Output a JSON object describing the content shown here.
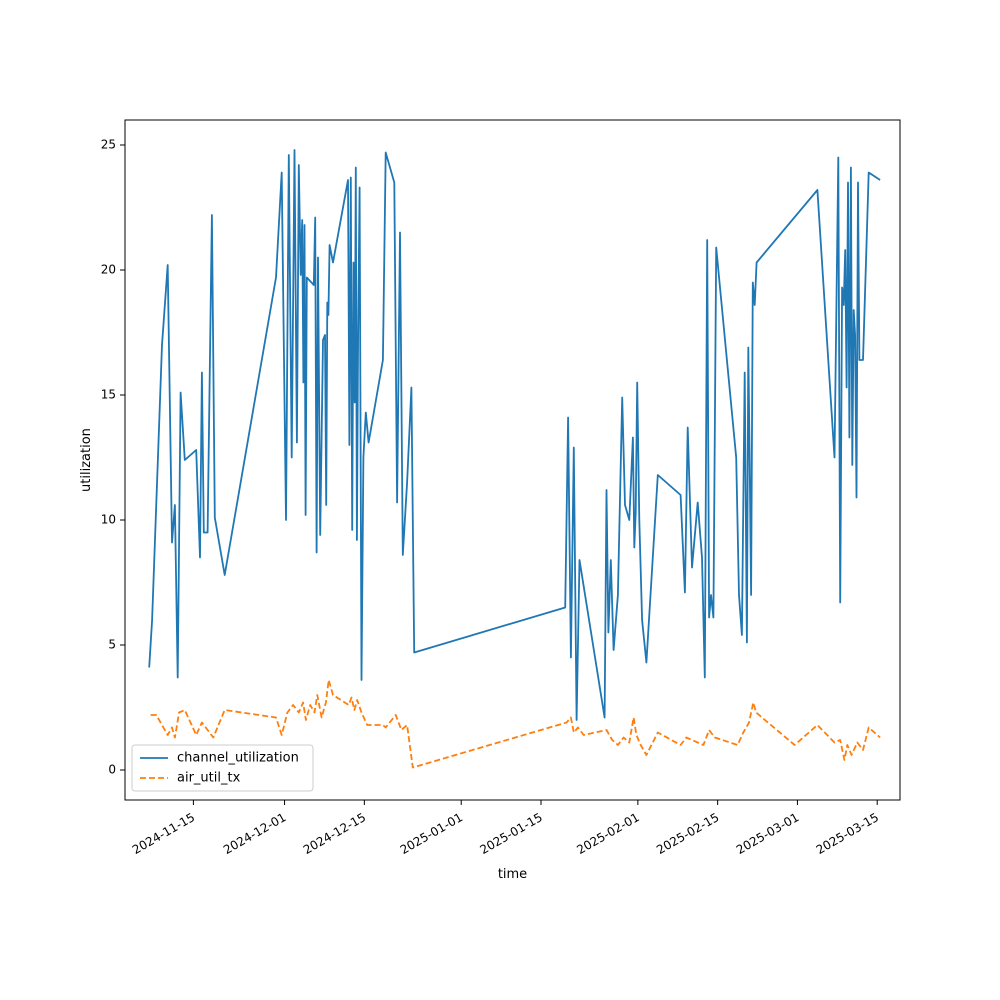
{
  "chart_data": {
    "type": "line",
    "title": "",
    "xlabel": "time",
    "ylabel": "utilization",
    "x_type": "date",
    "xlim": [
      "2024-11-03",
      "2025-03-19"
    ],
    "ylim": [
      -1.2,
      26.0
    ],
    "x_ticks": [
      "2024-11-15",
      "2024-12-01",
      "2024-12-15",
      "2025-01-01",
      "2025-01-15",
      "2025-02-01",
      "2025-02-15",
      "2025-03-01",
      "2025-03-15"
    ],
    "y_ticks": [
      0,
      5,
      10,
      15,
      20,
      25
    ],
    "grid": false,
    "legend": {
      "placement": "lower-left"
    },
    "series": [
      {
        "name": "channel_utilization",
        "color": "#1f77b4",
        "style": "solid",
        "points": [
          [
            "2024-11-07",
            4.1
          ],
          [
            "2024-11-07",
            6.0
          ],
          [
            "2024-11-09",
            17.0
          ],
          [
            "2024-11-10",
            20.2
          ],
          [
            "2024-11-11",
            9.1
          ],
          [
            "2024-11-11",
            10.6
          ],
          [
            "2024-11-12",
            3.7
          ],
          [
            "2024-11-12",
            15.1
          ],
          [
            "2024-11-13",
            12.4
          ],
          [
            "2024-11-15",
            12.8
          ],
          [
            "2024-11-16",
            8.5
          ],
          [
            "2024-11-16",
            15.9
          ],
          [
            "2024-11-16",
            9.5
          ],
          [
            "2024-11-17",
            9.5
          ],
          [
            "2024-11-18",
            22.2
          ],
          [
            "2024-11-18",
            10.1
          ],
          [
            "2024-11-20",
            7.8
          ],
          [
            "2024-11-29",
            19.7
          ],
          [
            "2024-11-30",
            23.9
          ],
          [
            "2024-12-01",
            10.0
          ],
          [
            "2024-12-01",
            24.6
          ],
          [
            "2024-12-02",
            12.5
          ],
          [
            "2024-12-02",
            24.8
          ],
          [
            "2024-12-03",
            13.1
          ],
          [
            "2024-12-03",
            24.2
          ],
          [
            "2024-12-03",
            19.8
          ],
          [
            "2024-12-04",
            22.0
          ],
          [
            "2024-12-04",
            15.5
          ],
          [
            "2024-12-04",
            21.8
          ],
          [
            "2024-12-04",
            10.2
          ],
          [
            "2024-12-04",
            19.7
          ],
          [
            "2024-12-06",
            19.4
          ],
          [
            "2024-12-06",
            22.1
          ],
          [
            "2024-12-06",
            8.7
          ],
          [
            "2024-12-06",
            20.5
          ],
          [
            "2024-12-07",
            9.4
          ],
          [
            "2024-12-07",
            17.2
          ],
          [
            "2024-12-08",
            17.4
          ],
          [
            "2024-12-08",
            10.6
          ],
          [
            "2024-12-08",
            18.7
          ],
          [
            "2024-12-08",
            18.2
          ],
          [
            "2024-12-08",
            21.0
          ],
          [
            "2024-12-09",
            20.3
          ],
          [
            "2024-12-12",
            23.6
          ],
          [
            "2024-12-12",
            13.0
          ],
          [
            "2024-12-12",
            23.7
          ],
          [
            "2024-12-12",
            9.6
          ],
          [
            "2024-12-13",
            20.3
          ],
          [
            "2024-12-13",
            14.7
          ],
          [
            "2024-12-13",
            24.1
          ],
          [
            "2024-12-13",
            9.2
          ],
          [
            "2024-12-13",
            17.4
          ],
          [
            "2024-12-14",
            23.3
          ],
          [
            "2024-12-14",
            3.6
          ],
          [
            "2024-12-14",
            12.5
          ],
          [
            "2024-12-15",
            14.3
          ],
          [
            "2024-12-15",
            13.1
          ],
          [
            "2024-12-18",
            16.4
          ],
          [
            "2024-12-18",
            24.7
          ],
          [
            "2024-12-20",
            23.5
          ],
          [
            "2024-12-20",
            10.7
          ],
          [
            "2024-12-21",
            21.5
          ],
          [
            "2024-12-21",
            8.6
          ],
          [
            "2024-12-22",
            11.5
          ],
          [
            "2024-12-23",
            15.3
          ],
          [
            "2024-12-23",
            4.7
          ],
          [
            "2025-01-19",
            6.5
          ],
          [
            "2025-01-19",
            14.1
          ],
          [
            "2025-01-20",
            4.5
          ],
          [
            "2025-01-20",
            12.9
          ],
          [
            "2025-01-21",
            2.0
          ],
          [
            "2025-01-21",
            8.4
          ],
          [
            "2025-01-26",
            2.1
          ],
          [
            "2025-01-26",
            11.2
          ],
          [
            "2025-01-26",
            5.5
          ],
          [
            "2025-01-27",
            8.4
          ],
          [
            "2025-01-27",
            4.8
          ],
          [
            "2025-01-28",
            7.0
          ],
          [
            "2025-01-29",
            14.9
          ],
          [
            "2025-01-29",
            10.6
          ],
          [
            "2025-01-30",
            10.0
          ],
          [
            "2025-01-31",
            13.3
          ],
          [
            "2025-01-31",
            8.9
          ],
          [
            "2025-01-31",
            10.3
          ],
          [
            "2025-01-31",
            15.5
          ],
          [
            "2025-02-01",
            10.0
          ],
          [
            "2025-02-01",
            6.0
          ],
          [
            "2025-02-02",
            4.3
          ],
          [
            "2025-02-04",
            11.8
          ],
          [
            "2025-02-08",
            11.0
          ],
          [
            "2025-02-09",
            7.1
          ],
          [
            "2025-02-09",
            13.7
          ],
          [
            "2025-02-10",
            8.1
          ],
          [
            "2025-02-11",
            10.7
          ],
          [
            "2025-02-12",
            8.5
          ],
          [
            "2025-02-12",
            3.7
          ],
          [
            "2025-02-13",
            21.2
          ],
          [
            "2025-02-13",
            6.1
          ],
          [
            "2025-02-13",
            7.0
          ],
          [
            "2025-02-14",
            6.1
          ],
          [
            "2025-02-14",
            20.9
          ],
          [
            "2025-02-18",
            12.5
          ],
          [
            "2025-02-18",
            7.0
          ],
          [
            "2025-02-19",
            5.4
          ],
          [
            "2025-02-19",
            15.9
          ],
          [
            "2025-02-20",
            5.1
          ],
          [
            "2025-02-20",
            16.9
          ],
          [
            "2025-02-20",
            12.3
          ],
          [
            "2025-02-20",
            7.0
          ],
          [
            "2025-02-21",
            19.5
          ],
          [
            "2025-02-21",
            18.6
          ],
          [
            "2025-02-21",
            20.3
          ],
          [
            "2025-03-04",
            23.2
          ],
          [
            "2025-03-07",
            12.5
          ],
          [
            "2025-03-08",
            24.5
          ],
          [
            "2025-03-08",
            6.7
          ],
          [
            "2025-03-08",
            19.3
          ],
          [
            "2025-03-09",
            18.6
          ],
          [
            "2025-03-09",
            20.8
          ],
          [
            "2025-03-09",
            15.3
          ],
          [
            "2025-03-09",
            23.5
          ],
          [
            "2025-03-10",
            13.3
          ],
          [
            "2025-03-10",
            24.1
          ],
          [
            "2025-03-10",
            12.2
          ],
          [
            "2025-03-10",
            18.4
          ],
          [
            "2025-03-11",
            17.4
          ],
          [
            "2025-03-11",
            10.9
          ],
          [
            "2025-03-11",
            23.5
          ],
          [
            "2025-03-11",
            16.4
          ],
          [
            "2025-03-12",
            16.4
          ],
          [
            "2025-03-13",
            23.9
          ],
          [
            "2025-03-15",
            23.6
          ]
        ]
      },
      {
        "name": "air_util_tx",
        "color": "#ff7f0e",
        "style": "dashed",
        "points": [
          [
            "2024-11-07",
            2.2
          ],
          [
            "2024-11-08",
            2.2
          ],
          [
            "2024-11-10",
            1.4
          ],
          [
            "2024-11-11",
            1.7
          ],
          [
            "2024-11-11",
            1.3
          ],
          [
            "2024-11-12",
            2.3
          ],
          [
            "2024-11-13",
            2.4
          ],
          [
            "2024-11-15",
            1.4
          ],
          [
            "2024-11-16",
            1.9
          ],
          [
            "2024-11-17",
            1.6
          ],
          [
            "2024-11-18",
            1.3
          ],
          [
            "2024-11-20",
            2.4
          ],
          [
            "2024-11-29",
            2.1
          ],
          [
            "2024-11-30",
            1.4
          ],
          [
            "2024-12-01",
            2.3
          ],
          [
            "2024-12-02",
            2.6
          ],
          [
            "2024-12-03",
            2.3
          ],
          [
            "2024-12-04",
            2.7
          ],
          [
            "2024-12-04",
            2.0
          ],
          [
            "2024-12-05",
            2.6
          ],
          [
            "2024-12-06",
            2.3
          ],
          [
            "2024-12-06",
            3.0
          ],
          [
            "2024-12-07",
            2.1
          ],
          [
            "2024-12-08",
            2.7
          ],
          [
            "2024-12-08",
            3.6
          ],
          [
            "2024-12-09",
            3.0
          ],
          [
            "2024-12-12",
            2.6
          ],
          [
            "2024-12-12",
            2.9
          ],
          [
            "2024-12-13",
            2.4
          ],
          [
            "2024-12-13",
            2.8
          ],
          [
            "2024-12-14",
            2.3
          ],
          [
            "2024-12-15",
            1.8
          ],
          [
            "2024-12-18",
            1.8
          ],
          [
            "2024-12-18",
            1.7
          ],
          [
            "2024-12-20",
            2.2
          ],
          [
            "2024-12-21",
            1.6
          ],
          [
            "2024-12-22",
            1.8
          ],
          [
            "2024-12-23",
            0.1
          ],
          [
            "2025-01-19",
            1.9
          ],
          [
            "2025-01-20",
            2.1
          ],
          [
            "2025-01-20",
            1.5
          ],
          [
            "2025-01-21",
            1.7
          ],
          [
            "2025-01-22",
            1.4
          ],
          [
            "2025-01-26",
            1.6
          ],
          [
            "2025-01-27",
            1.2
          ],
          [
            "2025-01-28",
            1.0
          ],
          [
            "2025-01-29",
            1.3
          ],
          [
            "2025-01-30",
            1.1
          ],
          [
            "2025-01-31",
            2.1
          ],
          [
            "2025-01-31",
            1.4
          ],
          [
            "2025-02-01",
            1.0
          ],
          [
            "2025-02-02",
            0.6
          ],
          [
            "2025-02-04",
            1.5
          ],
          [
            "2025-02-08",
            1.0
          ],
          [
            "2025-02-09",
            1.3
          ],
          [
            "2025-02-11",
            1.1
          ],
          [
            "2025-02-12",
            1.0
          ],
          [
            "2025-02-13",
            1.6
          ],
          [
            "2025-02-14",
            1.3
          ],
          [
            "2025-02-18",
            1.0
          ],
          [
            "2025-02-19",
            1.5
          ],
          [
            "2025-02-20",
            1.9
          ],
          [
            "2025-02-21",
            2.7
          ],
          [
            "2025-02-21",
            2.3
          ],
          [
            "2025-02-28",
            1.0
          ],
          [
            "2025-03-04",
            1.8
          ],
          [
            "2025-03-07",
            1.1
          ],
          [
            "2025-03-08",
            1.2
          ],
          [
            "2025-03-09",
            0.4
          ],
          [
            "2025-03-09",
            1.0
          ],
          [
            "2025-03-10",
            0.6
          ],
          [
            "2025-03-11",
            1.1
          ],
          [
            "2025-03-12",
            0.8
          ],
          [
            "2025-03-13",
            1.7
          ],
          [
            "2025-03-15",
            1.3
          ]
        ]
      }
    ]
  }
}
